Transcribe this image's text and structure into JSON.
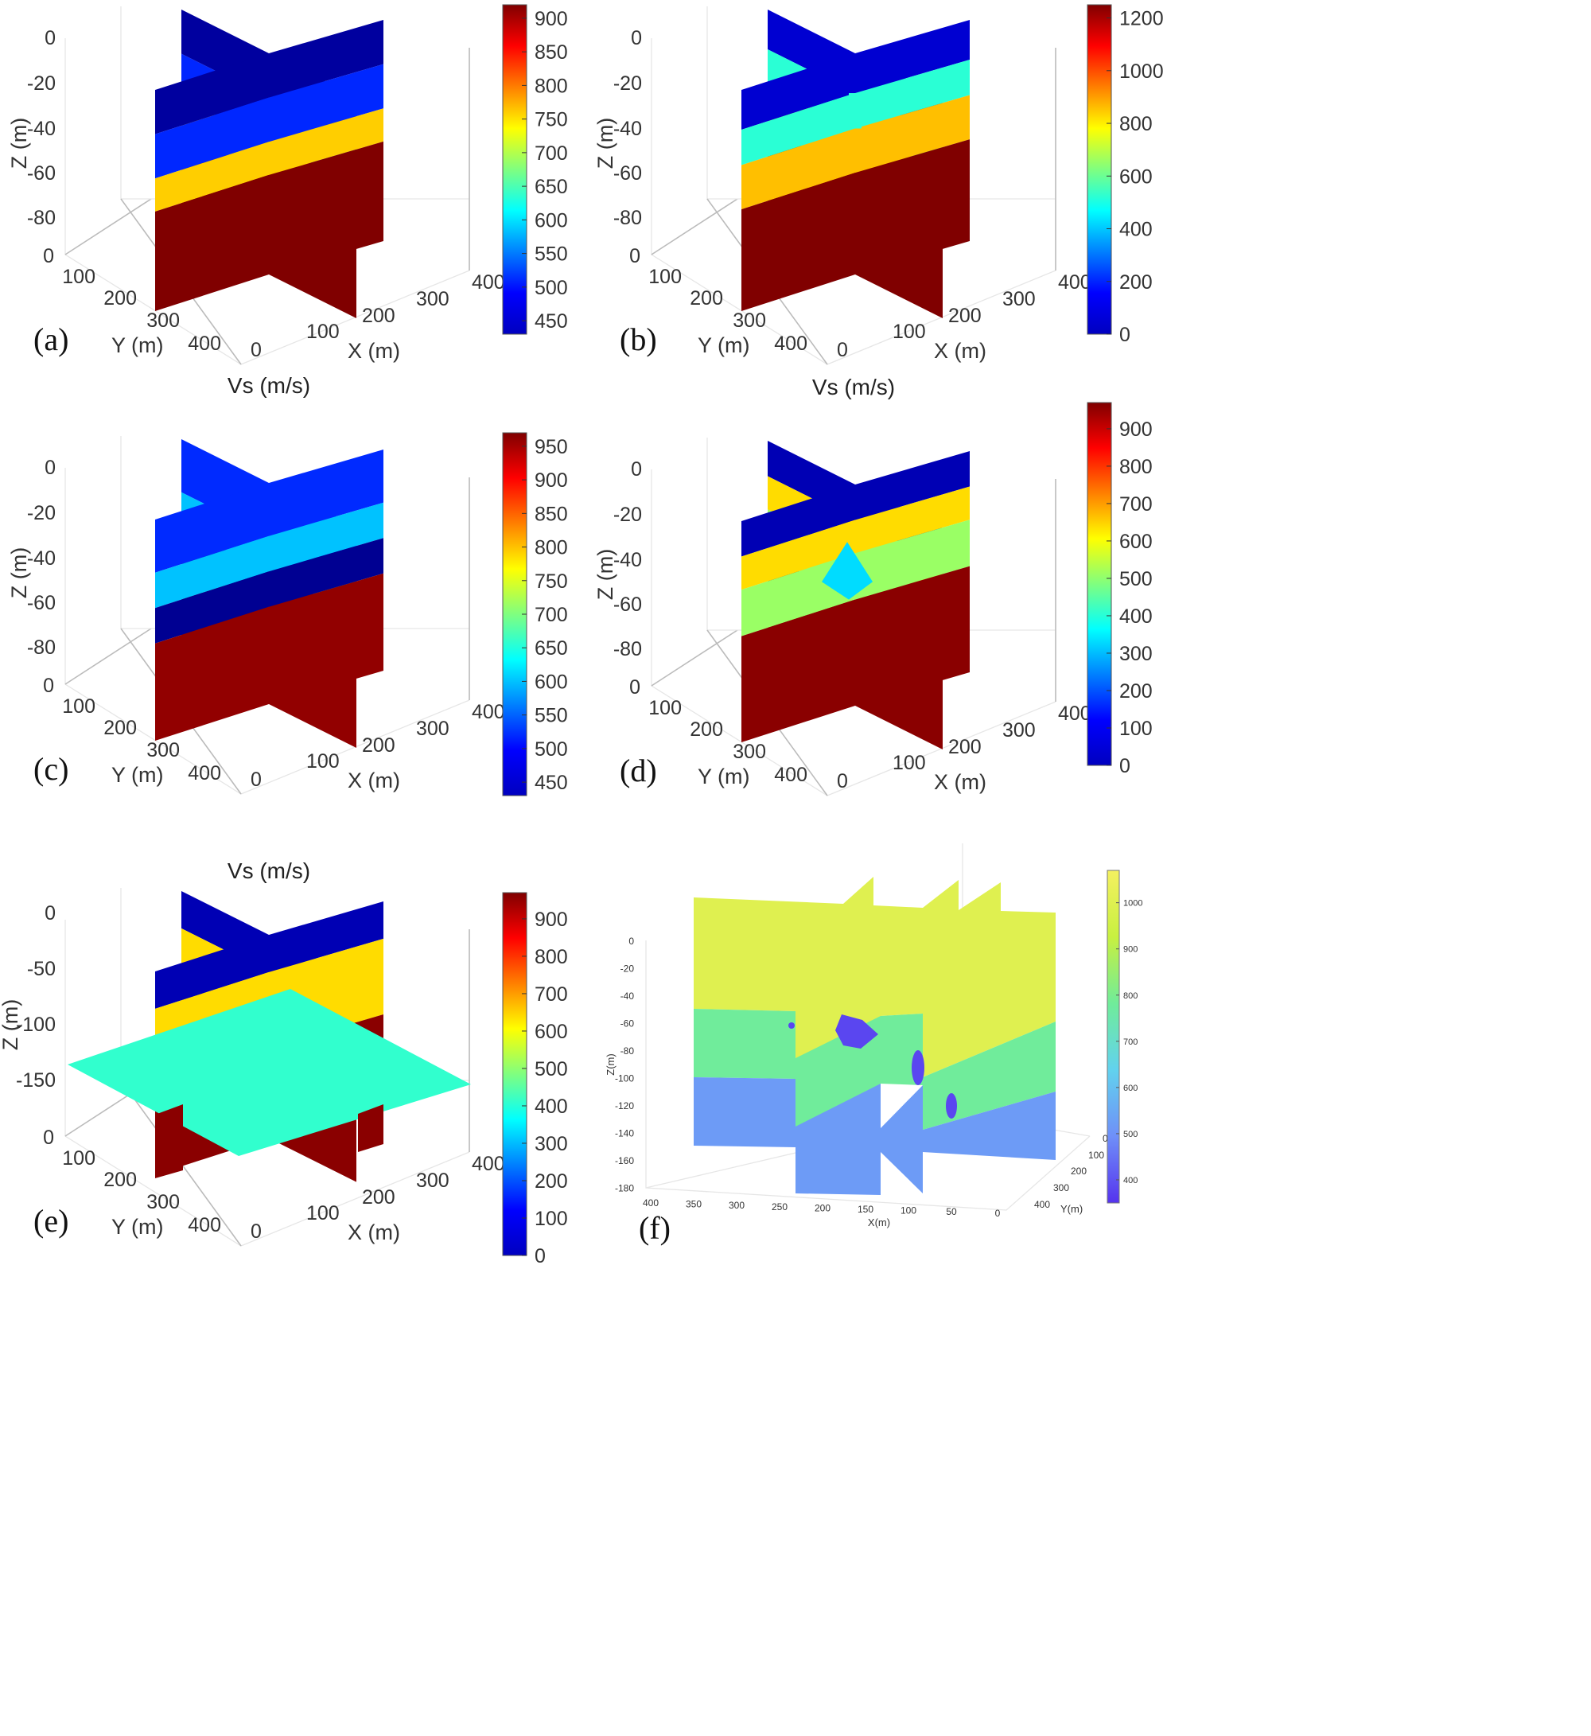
{
  "figure": {
    "panel_labels": [
      "(a)",
      "(b)",
      "(c)",
      "(d)",
      "(e)",
      "(f)"
    ]
  },
  "chart_data": [
    {
      "panel": "(a)",
      "type": "3d-slice",
      "title": "",
      "xlabel": "X (m)",
      "ylabel": "Y (m)",
      "zlabel": "Z (m)",
      "x_ticks": [
        "0",
        "100",
        "200",
        "300",
        "400"
      ],
      "y_ticks": [
        "0",
        "100",
        "200",
        "300",
        "400"
      ],
      "z_ticks": [
        "0",
        "-20",
        "-40",
        "-60",
        "-80"
      ],
      "colorbar": {
        "ticks": [
          "450",
          "500",
          "550",
          "600",
          "650",
          "700",
          "750",
          "800",
          "850",
          "900"
        ],
        "range": [
          430,
          920
        ]
      },
      "layers": [
        {
          "top_z": 0,
          "vs": 445
        },
        {
          "top_z": -20,
          "vs": 510
        },
        {
          "top_z": -40,
          "vs": 760
        },
        {
          "top_z": -55,
          "vs": 920
        }
      ]
    },
    {
      "panel": "(b)",
      "type": "3d-slice",
      "title": "",
      "xlabel": "X (m)",
      "ylabel": "Y (m)",
      "zlabel": "Z (m)",
      "x_ticks": [
        "0",
        "100",
        "200",
        "300",
        "400"
      ],
      "y_ticks": [
        "0",
        "100",
        "200",
        "300",
        "400"
      ],
      "z_ticks": [
        "0",
        "-20",
        "-40",
        "-60",
        "-80"
      ],
      "colorbar": {
        "ticks": [
          "0",
          "200",
          "400",
          "600",
          "800",
          "1000",
          "1200"
        ],
        "range": [
          0,
          1250
        ]
      },
      "layers": [
        {
          "top_z": 0,
          "vs": 100
        },
        {
          "top_z": -18,
          "vs": 520
        },
        {
          "top_z": -34,
          "vs": 860
        },
        {
          "top_z": -54,
          "vs": 1250
        }
      ]
    },
    {
      "panel": "(c)",
      "type": "3d-slice",
      "title": "Vs (m/s)",
      "xlabel": "X (m)",
      "ylabel": "Y (m)",
      "zlabel": "Z (m)",
      "x_ticks": [
        "0",
        "100",
        "200",
        "300",
        "400"
      ],
      "y_ticks": [
        "0",
        "100",
        "200",
        "300",
        "400"
      ],
      "z_ticks": [
        "0",
        "-20",
        "-40",
        "-60",
        "-80"
      ],
      "colorbar": {
        "ticks": [
          "450",
          "500",
          "550",
          "600",
          "650",
          "700",
          "750",
          "800",
          "850",
          "900",
          "950"
        ],
        "range": [
          430,
          970
        ]
      },
      "layers": [
        {
          "top_z": 0,
          "vs": 520
        },
        {
          "top_z": -24,
          "vs": 600
        },
        {
          "top_z": -40,
          "vs": 440
        },
        {
          "top_z": -56,
          "vs": 960
        }
      ]
    },
    {
      "panel": "(d)",
      "type": "3d-slice",
      "title": "Vs (m/s)",
      "xlabel": "X (m)",
      "ylabel": "Y (m)",
      "zlabel": "Z (m)",
      "x_ticks": [
        "0",
        "100",
        "200",
        "300",
        "400"
      ],
      "y_ticks": [
        "0",
        "100",
        "200",
        "300",
        "400"
      ],
      "z_ticks": [
        "0",
        "-20",
        "-40",
        "-60",
        "-80"
      ],
      "colorbar": {
        "ticks": [
          "0",
          "100",
          "200",
          "300",
          "400",
          "500",
          "600",
          "700",
          "800",
          "900"
        ],
        "range": [
          0,
          970
        ]
      },
      "layers": [
        {
          "top_z": 0,
          "vs": 50
        },
        {
          "top_z": -16,
          "vs": 640
        },
        {
          "top_z": -31,
          "vs": 510
        },
        {
          "top_z": -52,
          "vs": 960
        }
      ],
      "anomaly": {
        "vs": 330
      }
    },
    {
      "panel": "(e)",
      "type": "3d-slice",
      "title": "Vs (m/s)",
      "xlabel": "X (m)",
      "ylabel": "Y (m)",
      "zlabel": "Z (m)",
      "x_ticks": [
        "0",
        "100",
        "200",
        "300",
        "400"
      ],
      "y_ticks": [
        "0",
        "100",
        "200",
        "300",
        "400"
      ],
      "z_ticks": [
        "0",
        "-50",
        "-100",
        "-150"
      ],
      "colorbar": {
        "ticks": [
          "0",
          "100",
          "200",
          "300",
          "400",
          "500",
          "600",
          "700",
          "800",
          "900"
        ],
        "range": [
          0,
          970
        ]
      },
      "layers": [
        {
          "top_z": 0,
          "vs": 50
        },
        {
          "top_z": -33,
          "vs": 640
        },
        {
          "top_z": -100,
          "vs": 960
        }
      ],
      "horizontal_slice": {
        "z": -100,
        "vs": 410
      }
    },
    {
      "panel": "(f)",
      "type": "3d-slice",
      "title": "",
      "xlabel": "X(m)",
      "ylabel": "Y(m)",
      "zlabel": "Z(m)",
      "x_ticks": [
        "400",
        "350",
        "300",
        "250",
        "200",
        "150",
        "100",
        "50",
        "0"
      ],
      "y_ticks": [
        "0",
        "100",
        "200",
        "300",
        "400"
      ],
      "z_ticks": [
        "0",
        "-20",
        "-40",
        "-60",
        "-80",
        "-100",
        "-120",
        "-140",
        "-160",
        "-180"
      ],
      "colorbar": {
        "ticks": [
          "400",
          "500",
          "600",
          "700",
          "800",
          "900",
          "1000"
        ],
        "range": [
          350,
          1070
        ]
      },
      "layers": [
        {
          "top_z": 0,
          "vs": 1000
        },
        {
          "top_z": -60,
          "vs": 780
        },
        {
          "top_z": -105,
          "vs": 520
        }
      ],
      "anomalies": [
        {
          "vs": 380
        },
        {
          "vs": 380
        },
        {
          "vs": 380
        }
      ]
    }
  ]
}
